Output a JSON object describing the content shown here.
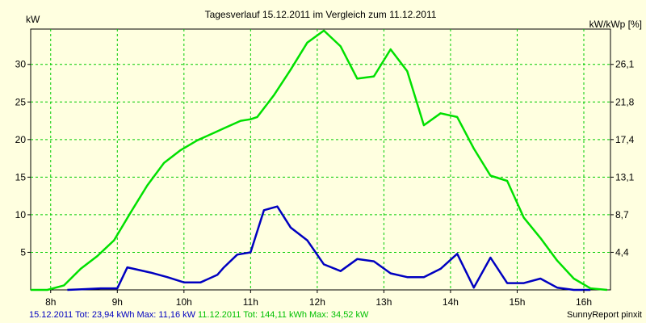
{
  "chart_data": {
    "type": "line",
    "title": "Tagesverlauf 15.12.2011 im Vergleich zum 11.12.2011",
    "ylabel_left": "kW",
    "ylabel_right": "kW/kWp [%]",
    "xlim": [
      7.7,
      16.4
    ],
    "ylim": [
      0,
      34.7
    ],
    "x_ticks": [
      8,
      9,
      10,
      11,
      12,
      13,
      14,
      15,
      16
    ],
    "x_tick_labels": [
      "8h",
      "9h",
      "10h",
      "11h",
      "12h",
      "13h",
      "14h",
      "15h",
      "16h"
    ],
    "y_ticks_left": [
      5,
      10,
      15,
      20,
      25,
      30
    ],
    "y_ticks_left_labels": [
      "5",
      "10",
      "15",
      "20",
      "25",
      "30"
    ],
    "y_ticks_right_values": [
      5,
      10,
      15,
      20,
      25,
      30
    ],
    "y_ticks_right_labels": [
      "4,4",
      "8,7",
      "13,1",
      "17,4",
      "21,8",
      "26,1"
    ],
    "grid": true,
    "series": [
      {
        "name": "15.12.2011",
        "color": "#0000c0",
        "x": [
          8.25,
          8.5,
          8.75,
          9.0,
          9.15,
          9.5,
          9.75,
          10.0,
          10.25,
          10.5,
          10.6,
          10.8,
          11.0,
          11.2,
          11.4,
          11.6,
          11.85,
          12.1,
          12.35,
          12.6,
          12.85,
          13.1,
          13.35,
          13.6,
          13.85,
          14.1,
          14.35,
          14.6,
          14.85,
          15.1,
          15.35,
          15.6,
          15.85,
          16.1
        ],
        "values": [
          0,
          0.1,
          0.2,
          0.2,
          3.0,
          2.3,
          1.7,
          1.0,
          1.0,
          2.0,
          3.0,
          4.7,
          5.0,
          10.6,
          11.1,
          8.3,
          6.6,
          3.4,
          2.5,
          4.1,
          3.8,
          2.2,
          1.7,
          1.7,
          2.8,
          4.8,
          0.3,
          4.3,
          0.9,
          0.9,
          1.5,
          0.3,
          0,
          0
        ]
      },
      {
        "name": "11.12.2011",
        "color": "#00e000",
        "x": [
          7.7,
          7.95,
          8.2,
          8.45,
          8.7,
          8.95,
          9.2,
          9.45,
          9.7,
          9.95,
          10.2,
          10.45,
          10.6,
          10.85,
          11.0,
          11.1,
          11.35,
          11.6,
          11.85,
          12.1,
          12.35,
          12.6,
          12.85,
          13.1,
          13.35,
          13.6,
          13.85,
          14.1,
          14.35,
          14.6,
          14.85,
          15.1,
          15.35,
          15.6,
          15.85,
          16.1,
          16.35
        ],
        "values": [
          0,
          0,
          0.6,
          2.8,
          4.5,
          6.6,
          10.3,
          13.9,
          16.9,
          18.6,
          19.9,
          20.9,
          21.5,
          22.5,
          22.7,
          23.0,
          25.9,
          29.3,
          32.9,
          34.5,
          32.4,
          28.1,
          28.4,
          32.0,
          29.1,
          21.9,
          23.5,
          23.0,
          18.8,
          15.2,
          14.5,
          9.6,
          6.9,
          3.9,
          1.5,
          0.2,
          0
        ]
      }
    ]
  },
  "legend": {
    "series1_label": "15.12.2011 Tot: 23,94 kWh Max: 11,16 kW",
    "series2_label": "11.12.2011 Tot: 144,11 kWh Max: 34,52 kW",
    "footer_right": "SunnyReport pinxit"
  },
  "colors": {
    "background": "#ffffe0",
    "grid": "#00cc00",
    "axis": "#000000"
  }
}
